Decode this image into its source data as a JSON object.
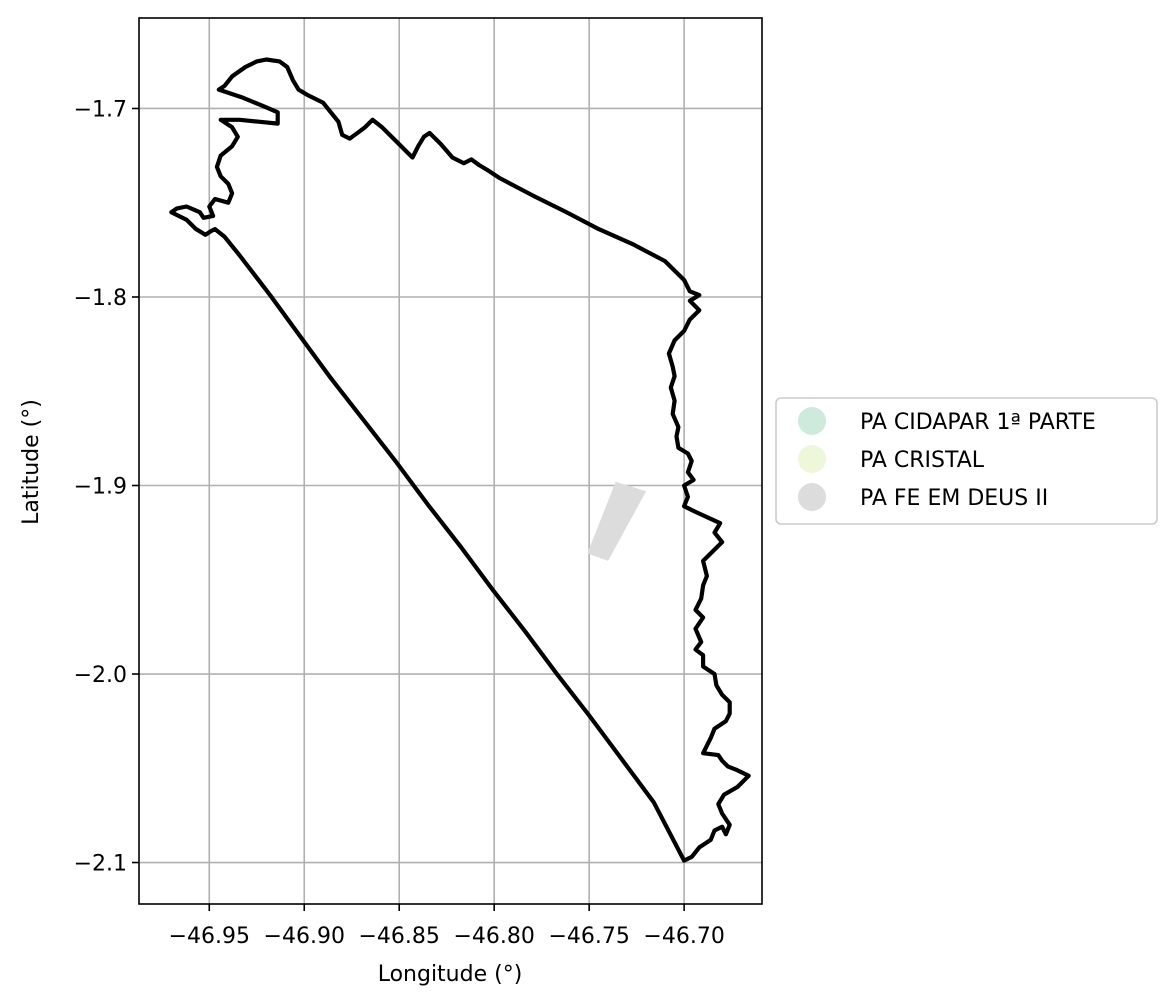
{
  "chart_data": {
    "type": "map",
    "title": "",
    "xlabel": "Longitude (°)",
    "ylabel": "Latitude (°)",
    "xlim": [
      -46.987,
      -46.659
    ],
    "ylim": [
      -2.122,
      -1.652
    ],
    "grid": true,
    "x_ticks": [
      -46.95,
      -46.9,
      -46.85,
      -46.8,
      -46.75,
      -46.7
    ],
    "x_tick_labels": [
      "−46.95",
      "−46.90",
      "−46.85",
      "−46.80",
      "−46.75",
      "−46.70"
    ],
    "y_ticks": [
      -1.7,
      -1.8,
      -1.9,
      -2.0,
      -2.1
    ],
    "y_tick_labels": [
      "−1.7",
      "−1.8",
      "−1.9",
      "−2.0",
      "−2.1"
    ],
    "legend": {
      "placement": "right-outside",
      "entries": [
        {
          "label": "PA CIDAPAR 1ª PARTE",
          "color": "#cdeadd"
        },
        {
          "label": "PA CRISTAL",
          "color": "#eef7d9"
        },
        {
          "label": "PA FE EM DEUS II",
          "color": "#dcdcdc"
        }
      ]
    },
    "boundary_outline": {
      "color": "#000000",
      "points": [
        [
          -46.942,
          -1.768
        ],
        [
          -46.934,
          -1.778
        ],
        [
          -46.918,
          -1.799
        ],
        [
          -46.902,
          -1.821
        ],
        [
          -46.886,
          -1.843
        ],
        [
          -46.869,
          -1.865
        ],
        [
          -46.852,
          -1.887
        ],
        [
          -46.835,
          -1.91
        ],
        [
          -46.818,
          -1.932
        ],
        [
          -46.801,
          -1.955
        ],
        [
          -46.784,
          -1.977
        ],
        [
          -46.767,
          -2.0
        ],
        [
          -46.75,
          -2.022
        ],
        [
          -46.733,
          -2.045
        ],
        [
          -46.716,
          -2.068
        ],
        [
          -46.7,
          -2.099
        ],
        [
          -46.696,
          -2.097
        ],
        [
          -46.692,
          -2.092
        ],
        [
          -46.686,
          -2.088
        ],
        [
          -46.684,
          -2.083
        ],
        [
          -46.68,
          -2.081
        ],
        [
          -46.678,
          -2.085
        ],
        [
          -46.676,
          -2.08
        ],
        [
          -46.68,
          -2.074
        ],
        [
          -46.682,
          -2.069
        ],
        [
          -46.679,
          -2.064
        ],
        [
          -46.672,
          -2.06
        ],
        [
          -46.666,
          -2.054
        ],
        [
          -46.672,
          -2.051
        ],
        [
          -46.677,
          -2.049
        ],
        [
          -46.68,
          -2.046
        ],
        [
          -46.682,
          -2.043
        ],
        [
          -46.69,
          -2.042
        ],
        [
          -46.686,
          -2.034
        ],
        [
          -46.684,
          -2.029
        ],
        [
          -46.678,
          -2.025
        ],
        [
          -46.676,
          -2.021
        ],
        [
          -46.676,
          -2.015
        ],
        [
          -46.68,
          -2.011
        ],
        [
          -46.683,
          -2.006
        ],
        [
          -46.684,
          -2.0
        ],
        [
          -46.69,
          -1.996
        ],
        [
          -46.69,
          -1.99
        ],
        [
          -46.694,
          -1.987
        ],
        [
          -46.691,
          -1.983
        ],
        [
          -46.694,
          -1.976
        ],
        [
          -46.69,
          -1.97
        ],
        [
          -46.694,
          -1.966
        ],
        [
          -46.691,
          -1.96
        ],
        [
          -46.69,
          -1.953
        ],
        [
          -46.688,
          -1.948
        ],
        [
          -46.69,
          -1.94
        ],
        [
          -46.685,
          -1.935
        ],
        [
          -46.68,
          -1.93
        ],
        [
          -46.684,
          -1.925
        ],
        [
          -46.681,
          -1.92
        ],
        [
          -46.694,
          -1.914
        ],
        [
          -46.7,
          -1.911
        ],
        [
          -46.698,
          -1.906
        ],
        [
          -46.7,
          -1.9
        ],
        [
          -46.695,
          -1.897
        ],
        [
          -46.698,
          -1.893
        ],
        [
          -46.696,
          -1.887
        ],
        [
          -46.698,
          -1.883
        ],
        [
          -46.703,
          -1.88
        ],
        [
          -46.704,
          -1.874
        ],
        [
          -46.703,
          -1.869
        ],
        [
          -46.706,
          -1.862
        ],
        [
          -46.705,
          -1.855
        ],
        [
          -46.707,
          -1.848
        ],
        [
          -46.705,
          -1.842
        ],
        [
          -46.706,
          -1.837
        ],
        [
          -46.708,
          -1.83
        ],
        [
          -46.705,
          -1.823
        ],
        [
          -46.7,
          -1.818
        ],
        [
          -46.697,
          -1.812
        ],
        [
          -46.692,
          -1.807
        ],
        [
          -46.697,
          -1.802
        ],
        [
          -46.692,
          -1.799
        ],
        [
          -46.697,
          -1.797
        ],
        [
          -46.7,
          -1.791
        ],
        [
          -46.706,
          -1.785
        ],
        [
          -46.71,
          -1.781
        ],
        [
          -46.727,
          -1.772
        ],
        [
          -46.745,
          -1.764
        ],
        [
          -46.762,
          -1.755
        ],
        [
          -46.78,
          -1.746
        ],
        [
          -46.797,
          -1.737
        ],
        [
          -46.803,
          -1.733
        ],
        [
          -46.808,
          -1.73
        ],
        [
          -46.812,
          -1.727
        ],
        [
          -46.816,
          -1.729
        ],
        [
          -46.822,
          -1.726
        ],
        [
          -46.828,
          -1.719
        ],
        [
          -46.834,
          -1.713
        ],
        [
          -46.837,
          -1.715
        ],
        [
          -46.84,
          -1.72
        ],
        [
          -46.843,
          -1.726
        ],
        [
          -46.847,
          -1.722
        ],
        [
          -46.851,
          -1.718
        ],
        [
          -46.855,
          -1.714
        ],
        [
          -46.859,
          -1.71
        ],
        [
          -46.864,
          -1.706
        ],
        [
          -46.868,
          -1.71
        ],
        [
          -46.872,
          -1.713
        ],
        [
          -46.876,
          -1.716
        ],
        [
          -46.88,
          -1.714
        ],
        [
          -46.882,
          -1.707
        ],
        [
          -46.886,
          -1.702
        ],
        [
          -46.89,
          -1.697
        ],
        [
          -46.898,
          -1.693
        ],
        [
          -46.903,
          -1.69
        ],
        [
          -46.906,
          -1.685
        ],
        [
          -46.909,
          -1.678
        ],
        [
          -46.913,
          -1.675
        ],
        [
          -46.92,
          -1.674
        ],
        [
          -46.925,
          -1.675
        ],
        [
          -46.931,
          -1.678
        ],
        [
          -46.938,
          -1.683
        ],
        [
          -46.942,
          -1.688
        ],
        [
          -46.945,
          -1.69
        ],
        [
          -46.933,
          -1.694
        ],
        [
          -46.921,
          -1.699
        ],
        [
          -46.914,
          -1.702
        ],
        [
          -46.914,
          -1.708
        ],
        [
          -46.924,
          -1.707
        ],
        [
          -46.934,
          -1.706
        ],
        [
          -46.944,
          -1.706
        ],
        [
          -46.938,
          -1.71
        ],
        [
          -46.935,
          -1.715
        ],
        [
          -46.938,
          -1.72
        ],
        [
          -46.944,
          -1.725
        ],
        [
          -46.946,
          -1.731
        ],
        [
          -46.944,
          -1.736
        ],
        [
          -46.94,
          -1.74
        ],
        [
          -46.938,
          -1.745
        ],
        [
          -46.94,
          -1.75
        ],
        [
          -46.947,
          -1.748
        ],
        [
          -46.95,
          -1.752
        ],
        [
          -46.948,
          -1.757
        ],
        [
          -46.953,
          -1.758
        ],
        [
          -46.955,
          -1.755
        ],
        [
          -46.962,
          -1.752
        ],
        [
          -46.967,
          -1.753
        ],
        [
          -46.97,
          -1.755
        ],
        [
          -46.962,
          -1.759
        ],
        [
          -46.957,
          -1.764
        ],
        [
          -46.952,
          -1.767
        ],
        [
          -46.949,
          -1.765
        ],
        [
          -46.947,
          -1.764
        ],
        [
          -46.942,
          -1.768
        ]
      ]
    },
    "features": [
      {
        "name": "PA FE EM DEUS II",
        "color": "#dcdcdc",
        "points": [
          [
            -46.751,
            -1.936
          ],
          [
            -46.736,
            -1.898
          ],
          [
            -46.72,
            -1.903
          ],
          [
            -46.74,
            -1.94
          ]
        ]
      }
    ]
  }
}
